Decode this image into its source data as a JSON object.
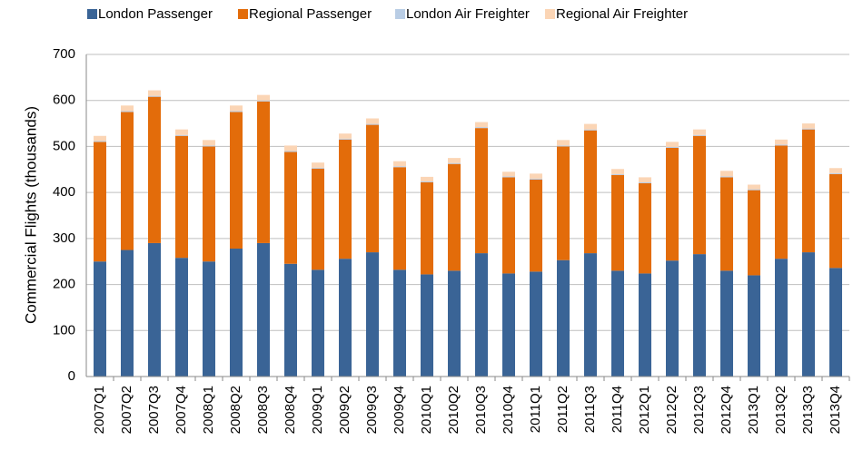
{
  "chart_data": {
    "type": "stacked-bar",
    "y_label": "Commercial Flights (thousands)",
    "categories": [
      "2007Q1",
      "2007Q2",
      "2007Q3",
      "2007Q4",
      "2008Q1",
      "2008Q2",
      "2008Q3",
      "2008Q4",
      "2009Q1",
      "2009Q2",
      "2009Q3",
      "2009Q4",
      "2010Q1",
      "2010Q2",
      "2010Q3",
      "2010Q4",
      "2011Q1",
      "2011Q2",
      "2011Q3",
      "2011Q4",
      "2012Q1",
      "2012Q2",
      "2012Q3",
      "2012Q4",
      "2013Q1",
      "2013Q2",
      "2013Q3",
      "2013Q4"
    ],
    "series": [
      {
        "name": "London Passenger",
        "color": "#3a6496",
        "values": [
          250,
          275,
          290,
          258,
          250,
          278,
          290,
          245,
          232,
          256,
          270,
          232,
          222,
          230,
          268,
          224,
          228,
          253,
          268,
          230,
          224,
          252,
          266,
          230,
          220,
          256,
          270,
          236
        ]
      },
      {
        "name": "Regional Passenger",
        "color": "#e36c0a",
        "values": [
          260,
          300,
          318,
          265,
          250,
          297,
          308,
          243,
          220,
          259,
          277,
          223,
          200,
          232,
          272,
          209,
          200,
          247,
          267,
          208,
          196,
          245,
          257,
          203,
          185,
          246,
          267,
          204
        ]
      },
      {
        "name": "London Air Freighter",
        "color": "#b9cde5",
        "values": [
          2,
          2,
          2,
          2,
          2,
          2,
          2,
          2,
          2,
          2,
          2,
          2,
          2,
          2,
          2,
          2,
          2,
          2,
          2,
          2,
          2,
          2,
          2,
          2,
          2,
          2,
          2,
          2
        ]
      },
      {
        "name": "Regional Air Freighter",
        "color": "#fbd5b5",
        "values": [
          11,
          12,
          12,
          12,
          12,
          12,
          12,
          12,
          11,
          11,
          12,
          11,
          10,
          11,
          11,
          10,
          11,
          12,
          12,
          11,
          11,
          11,
          12,
          12,
          10,
          11,
          11,
          11
        ]
      }
    ],
    "ylim": [
      0,
      700
    ],
    "yticks": [
      0,
      100,
      200,
      300,
      400,
      500,
      600,
      700
    ],
    "grid": true
  }
}
